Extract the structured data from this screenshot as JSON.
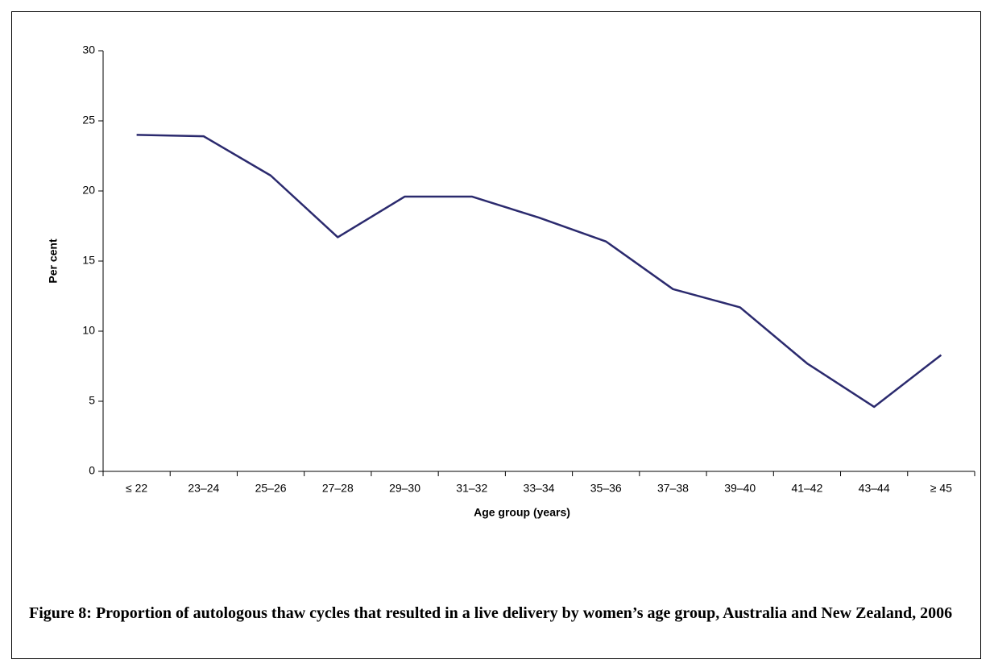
{
  "chart_data": {
    "type": "line",
    "caption": "Figure 8: Proportion of autologous thaw cycles that resulted in a live delivery by women’s age group, Australia and New Zealand, 2006",
    "x_label": "Age group (years)",
    "y_label": "Per cent",
    "categories": [
      "≤ 22",
      "23–24",
      "25–26",
      "27–28",
      "29–30",
      "31–32",
      "33–34",
      "35–36",
      "37–38",
      "39–40",
      "41–42",
      "43–44",
      "≥ 45"
    ],
    "series": [
      {
        "name": null,
        "color": "#2b2a6e",
        "values": [
          24.0,
          23.9,
          21.1,
          16.7,
          19.6,
          19.6,
          18.1,
          16.4,
          13.0,
          11.7,
          7.7,
          4.6,
          8.3
        ]
      }
    ],
    "ylim": [
      0,
      30
    ],
    "yticks": [
      0,
      5,
      10,
      15,
      20,
      25,
      30
    ],
    "grid": false
  }
}
